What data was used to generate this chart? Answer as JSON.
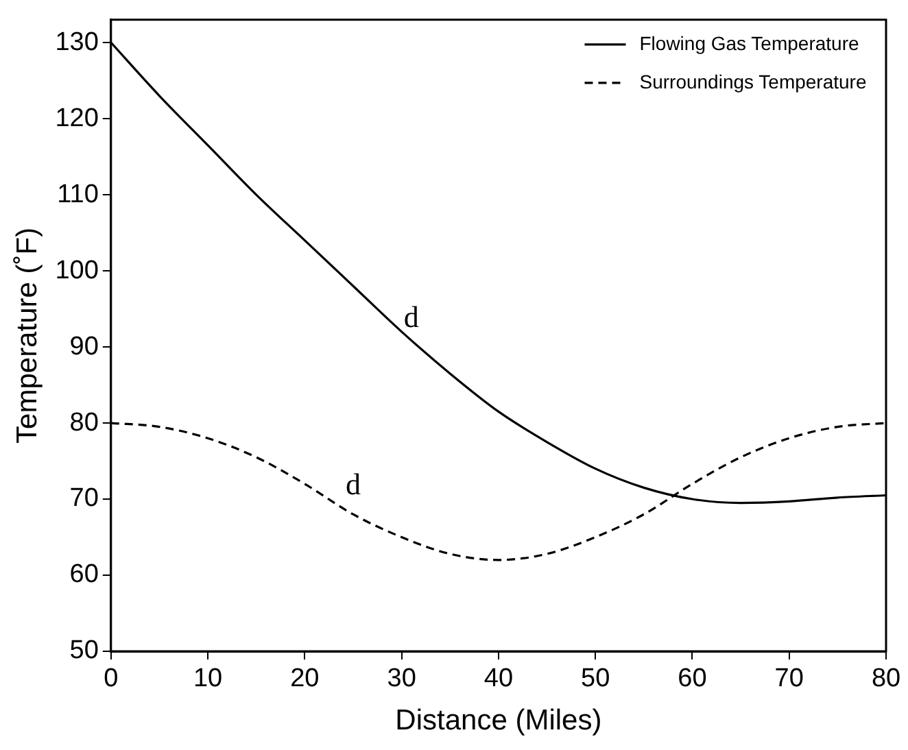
{
  "chart_data": {
    "type": "line",
    "xlabel": "Distance (Miles)",
    "ylabel": "Temperature (˚F)",
    "x": [
      0,
      5,
      10,
      15,
      20,
      25,
      30,
      35,
      40,
      45,
      50,
      55,
      60,
      65,
      70,
      75,
      80
    ],
    "series": [
      {
        "name": "Flowing Gas Temperature",
        "color": "#000000",
        "line_style": "solid",
        "values": [
          130,
          123,
          116.5,
          110,
          104,
          98,
          92,
          86.5,
          81.5,
          77.5,
          74,
          71.5,
          70,
          69.5,
          69.7,
          70.2,
          70.5
        ]
      },
      {
        "name": "Surroundings Temperature",
        "color": "#000000",
        "line_style": "dashed",
        "values": [
          80,
          79.5,
          78,
          75.5,
          72,
          68,
          65,
          62.8,
          62,
          62.8,
          65,
          68,
          72,
          75.5,
          78,
          79.5,
          80
        ]
      }
    ],
    "annotations": [
      {
        "text": "d",
        "x": 31,
        "y": 91
      },
      {
        "text": "d",
        "x": 25,
        "y": 69
      }
    ],
    "xlim": [
      0,
      80
    ],
    "xticks": [
      0,
      10,
      20,
      30,
      40,
      50,
      60,
      70,
      80
    ],
    "ylim": [
      50,
      133
    ],
    "yticks": [
      50,
      60,
      70,
      80,
      90,
      100,
      110,
      120,
      130
    ],
    "grid": false,
    "legend": "top right",
    "marker": "none"
  }
}
